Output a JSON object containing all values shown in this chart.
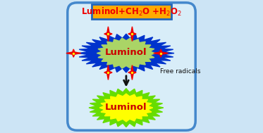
{
  "bg_color": "#cce4f5",
  "outer_box_facecolor": "#d8edf8",
  "outer_box_edge": "#4488cc",
  "title_box_color": "#ffaa00",
  "title_box_edge": "#2266bb",
  "top_blob_blue": "#0033cc",
  "top_blob_green": "#aad466",
  "top_luminol_text_color": "#cc0000",
  "bottom_blob_green": "#66dd00",
  "bottom_blob_yellow": "#ffff00",
  "bottom_luminol_text_color": "#cc0000",
  "star_color": "#ee0000",
  "star_center_color": "#ffee00",
  "arrow_color": "#111111",
  "free_radicals_color": "#111111",
  "free_radicals_text": "Free radicals",
  "title_text_color": "#ee0000",
  "title_text": "Luminol+CH$_2$O +H$_2$O$_2$"
}
